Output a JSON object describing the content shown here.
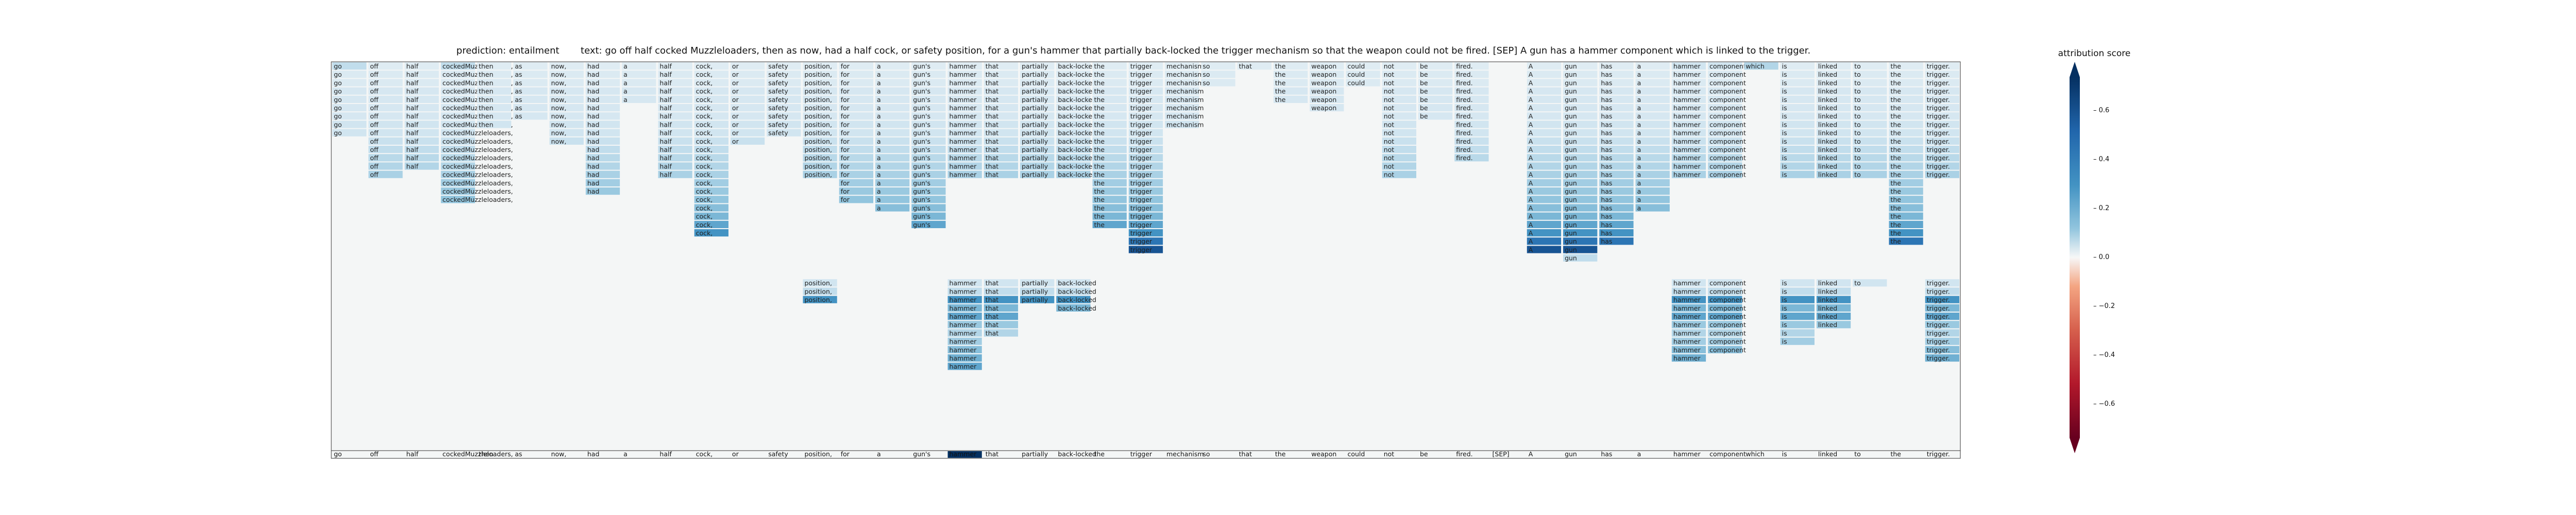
{
  "header": {
    "prediction_label": "prediction:",
    "prediction_value": "entailment",
    "text_label": "text:",
    "text_value": "go off half cocked Muzzleloaders, then as now, had a half cock, or safety position, for a gun's hammer that partially back-locked the trigger mechanism so that the weapon could not be fired. [SEP] A gun has a hammer component which is linked to the trigger."
  },
  "colorbar": {
    "title": "attribution score",
    "ticks": [
      "0.6",
      "0.4",
      "0.2",
      "0.0",
      "−0.2",
      "−0.4",
      "−0.6"
    ],
    "range": [
      -0.6,
      0.6
    ],
    "low_color": "#67001f",
    "mid_color": "#f7f7f7",
    "high_color": "#053061"
  },
  "chart_data": {
    "type": "heatmap",
    "title": "",
    "xlabel": "",
    "ylabel": "",
    "value_range": [
      -0.6,
      0.6
    ],
    "tokens": [
      "go",
      "off",
      "half",
      "cockedMuzzleloaders,",
      "then",
      "as",
      "now,",
      "had",
      "a",
      "half",
      "cock,",
      "or",
      "safety",
      "position,",
      "for",
      "a",
      "gun's",
      "hammer",
      "that",
      "partially",
      "back-locked",
      "the",
      "trigger",
      "mechanism",
      "so",
      "that",
      "the",
      "weapon",
      "could",
      "not",
      "be",
      "fired.",
      "[SEP]",
      "A",
      "gun",
      "has",
      "a",
      "hammer",
      "component",
      "which",
      "is",
      "linked",
      "to",
      "the",
      "trigger."
    ],
    "rows": [
      {
        "tokens": [
          0,
          1,
          2,
          3,
          4,
          5,
          6,
          7,
          8,
          9,
          10,
          11,
          12,
          13,
          14,
          15,
          16,
          17,
          18,
          19,
          20,
          21,
          22,
          23,
          24,
          25,
          26,
          27,
          28,
          29,
          30,
          31,
          33,
          34,
          35,
          36,
          37,
          38,
          39,
          40,
          41,
          42,
          43,
          44
        ],
        "value": 0.05,
        "strong": {
          "0": 0.1,
          "3": 0.1,
          "37": 0.08,
          "38": 0.08,
          "39": 0.12
        }
      },
      {
        "tokens": [
          0,
          1,
          2,
          3,
          4,
          5,
          6,
          7,
          8,
          9,
          10,
          11,
          12,
          13,
          14,
          15,
          16,
          17,
          18,
          19,
          20,
          21,
          22,
          23,
          24,
          26,
          27,
          28,
          29,
          30,
          31,
          33,
          34,
          35,
          36,
          37,
          38,
          40,
          41,
          42,
          43,
          44
        ],
        "value": 0.06
      },
      {
        "tokens": [
          0,
          1,
          2,
          3,
          4,
          5,
          6,
          7,
          8,
          9,
          10,
          11,
          12,
          13,
          14,
          15,
          16,
          17,
          18,
          19,
          20,
          21,
          22,
          23,
          24,
          26,
          27,
          28,
          29,
          30,
          31,
          33,
          34,
          35,
          36,
          37,
          38,
          40,
          41,
          42,
          43,
          44
        ],
        "value": 0.06
      },
      {
        "tokens": [
          0,
          1,
          2,
          3,
          4,
          5,
          6,
          7,
          8,
          9,
          10,
          11,
          12,
          13,
          14,
          15,
          16,
          17,
          18,
          19,
          20,
          21,
          22,
          23,
          26,
          27,
          29,
          30,
          31,
          33,
          34,
          35,
          36,
          37,
          38,
          40,
          41,
          42,
          43,
          44
        ],
        "value": 0.07
      },
      {
        "tokens": [
          0,
          1,
          2,
          3,
          4,
          5,
          6,
          7,
          8,
          9,
          10,
          11,
          12,
          13,
          14,
          15,
          16,
          17,
          18,
          19,
          20,
          21,
          22,
          23,
          26,
          27,
          29,
          30,
          31,
          33,
          34,
          35,
          36,
          37,
          38,
          40,
          41,
          42,
          43,
          44
        ],
        "value": 0.07
      },
      {
        "tokens": [
          0,
          1,
          2,
          3,
          4,
          5,
          6,
          7,
          9,
          10,
          11,
          12,
          13,
          14,
          15,
          16,
          17,
          18,
          19,
          20,
          21,
          22,
          23,
          27,
          29,
          30,
          31,
          33,
          34,
          35,
          36,
          37,
          38,
          40,
          41,
          42,
          43,
          44
        ],
        "value": 0.07
      },
      {
        "tokens": [
          0,
          1,
          2,
          3,
          4,
          5,
          6,
          7,
          9,
          10,
          11,
          12,
          13,
          14,
          15,
          16,
          17,
          18,
          19,
          20,
          21,
          22,
          23,
          29,
          30,
          31,
          33,
          34,
          35,
          36,
          37,
          38,
          40,
          41,
          42,
          43,
          44
        ],
        "value": 0.07
      },
      {
        "tokens": [
          0,
          1,
          2,
          3,
          4,
          6,
          7,
          9,
          10,
          11,
          12,
          13,
          14,
          15,
          16,
          17,
          18,
          19,
          20,
          21,
          22,
          23,
          29,
          31,
          33,
          34,
          35,
          36,
          37,
          38,
          40,
          41,
          42,
          43,
          44
        ],
        "value": 0.08
      },
      {
        "tokens": [
          0,
          1,
          2,
          3,
          6,
          7,
          9,
          10,
          11,
          12,
          13,
          14,
          15,
          16,
          17,
          18,
          19,
          20,
          21,
          22,
          29,
          31,
          33,
          34,
          35,
          36,
          37,
          38,
          40,
          41,
          42,
          43,
          44
        ],
        "value": 0.08
      },
      {
        "tokens": [
          1,
          2,
          3,
          6,
          7,
          9,
          10,
          11,
          13,
          14,
          15,
          16,
          17,
          18,
          19,
          20,
          21,
          22,
          29,
          31,
          33,
          34,
          35,
          36,
          37,
          38,
          40,
          41,
          42,
          43,
          44
        ],
        "value": 0.09
      },
      {
        "tokens": [
          1,
          2,
          3,
          7,
          9,
          10,
          13,
          14,
          15,
          16,
          17,
          18,
          19,
          20,
          21,
          22,
          29,
          31,
          33,
          34,
          35,
          36,
          37,
          38,
          40,
          41,
          42,
          43,
          44
        ],
        "value": 0.1
      },
      {
        "tokens": [
          1,
          2,
          3,
          7,
          9,
          10,
          13,
          14,
          15,
          16,
          17,
          18,
          19,
          20,
          21,
          22,
          29,
          31,
          33,
          34,
          35,
          36,
          37,
          38,
          40,
          41,
          42,
          43,
          44
        ],
        "value": 0.11
      },
      {
        "tokens": [
          1,
          2,
          3,
          7,
          9,
          10,
          13,
          14,
          15,
          16,
          17,
          18,
          19,
          20,
          21,
          22,
          29,
          33,
          34,
          35,
          36,
          37,
          38,
          40,
          41,
          42,
          43,
          44
        ],
        "value": 0.12
      },
      {
        "tokens": [
          1,
          3,
          7,
          9,
          10,
          13,
          14,
          15,
          16,
          17,
          18,
          19,
          20,
          21,
          22,
          29,
          33,
          34,
          35,
          36,
          37,
          38,
          40,
          41,
          42,
          43,
          44
        ],
        "value": 0.13
      },
      {
        "tokens": [
          3,
          7,
          10,
          14,
          15,
          16,
          21,
          22,
          33,
          34,
          35,
          36,
          43
        ],
        "value": 0.14
      },
      {
        "tokens": [
          3,
          7,
          10,
          14,
          15,
          16,
          21,
          22,
          33,
          34,
          35,
          36,
          43
        ],
        "value": 0.15
      },
      {
        "tokens": [
          3,
          10,
          14,
          15,
          16,
          21,
          22,
          33,
          34,
          35,
          36,
          43
        ],
        "value": 0.16
      },
      {
        "tokens": [
          10,
          15,
          16,
          21,
          22,
          33,
          34,
          35,
          36,
          43
        ],
        "value": 0.18
      },
      {
        "tokens": [
          10,
          16,
          21,
          22,
          33,
          34,
          35,
          43
        ],
        "value": 0.2
      },
      {
        "tokens": [
          10,
          16,
          21,
          22,
          33,
          34,
          35,
          43
        ],
        "value": 0.25
      },
      {
        "tokens": [
          10,
          22,
          33,
          34,
          35,
          43
        ],
        "value": 0.3
      },
      {
        "tokens": [
          22,
          33,
          34,
          35,
          43
        ],
        "value": 0.4
      },
      {
        "tokens": [
          22,
          33,
          34
        ],
        "value": 0.5
      },
      {
        "tokens": [
          34
        ],
        "value": 0.1
      },
      {
        "tokens": [],
        "value": 0.0
      },
      {
        "tokens": [],
        "value": 0.0
      },
      {
        "tokens": [
          13,
          17,
          18,
          19,
          20,
          37,
          38,
          40,
          41,
          42,
          44
        ],
        "value": 0.08
      },
      {
        "tokens": [
          13,
          17,
          18,
          19,
          20,
          37,
          38,
          40,
          41,
          44
        ],
        "value": 0.1
      },
      {
        "tokens": [
          13,
          17,
          18,
          19,
          20,
          37,
          38,
          40,
          41,
          44
        ],
        "value": 0.3
      },
      {
        "tokens": [
          17,
          18,
          20,
          37,
          38,
          40,
          41,
          44
        ],
        "value": 0.2
      },
      {
        "tokens": [
          17,
          18,
          37,
          38,
          40,
          41,
          44
        ],
        "value": 0.25
      },
      {
        "tokens": [
          17,
          18,
          37,
          38,
          40,
          41,
          44
        ],
        "value": 0.15
      },
      {
        "tokens": [
          17,
          18,
          37,
          38,
          40,
          44
        ],
        "value": 0.12
      },
      {
        "tokens": [
          17,
          37,
          38,
          40,
          44
        ],
        "value": 0.14
      },
      {
        "tokens": [
          17,
          37,
          38,
          44
        ],
        "value": 0.18
      },
      {
        "tokens": [
          17,
          37,
          44
        ],
        "value": 0.22
      },
      {
        "tokens": [
          17
        ],
        "value": 0.25
      }
    ],
    "bottom_highlight": {
      "token": 17,
      "value": 0.6
    }
  }
}
